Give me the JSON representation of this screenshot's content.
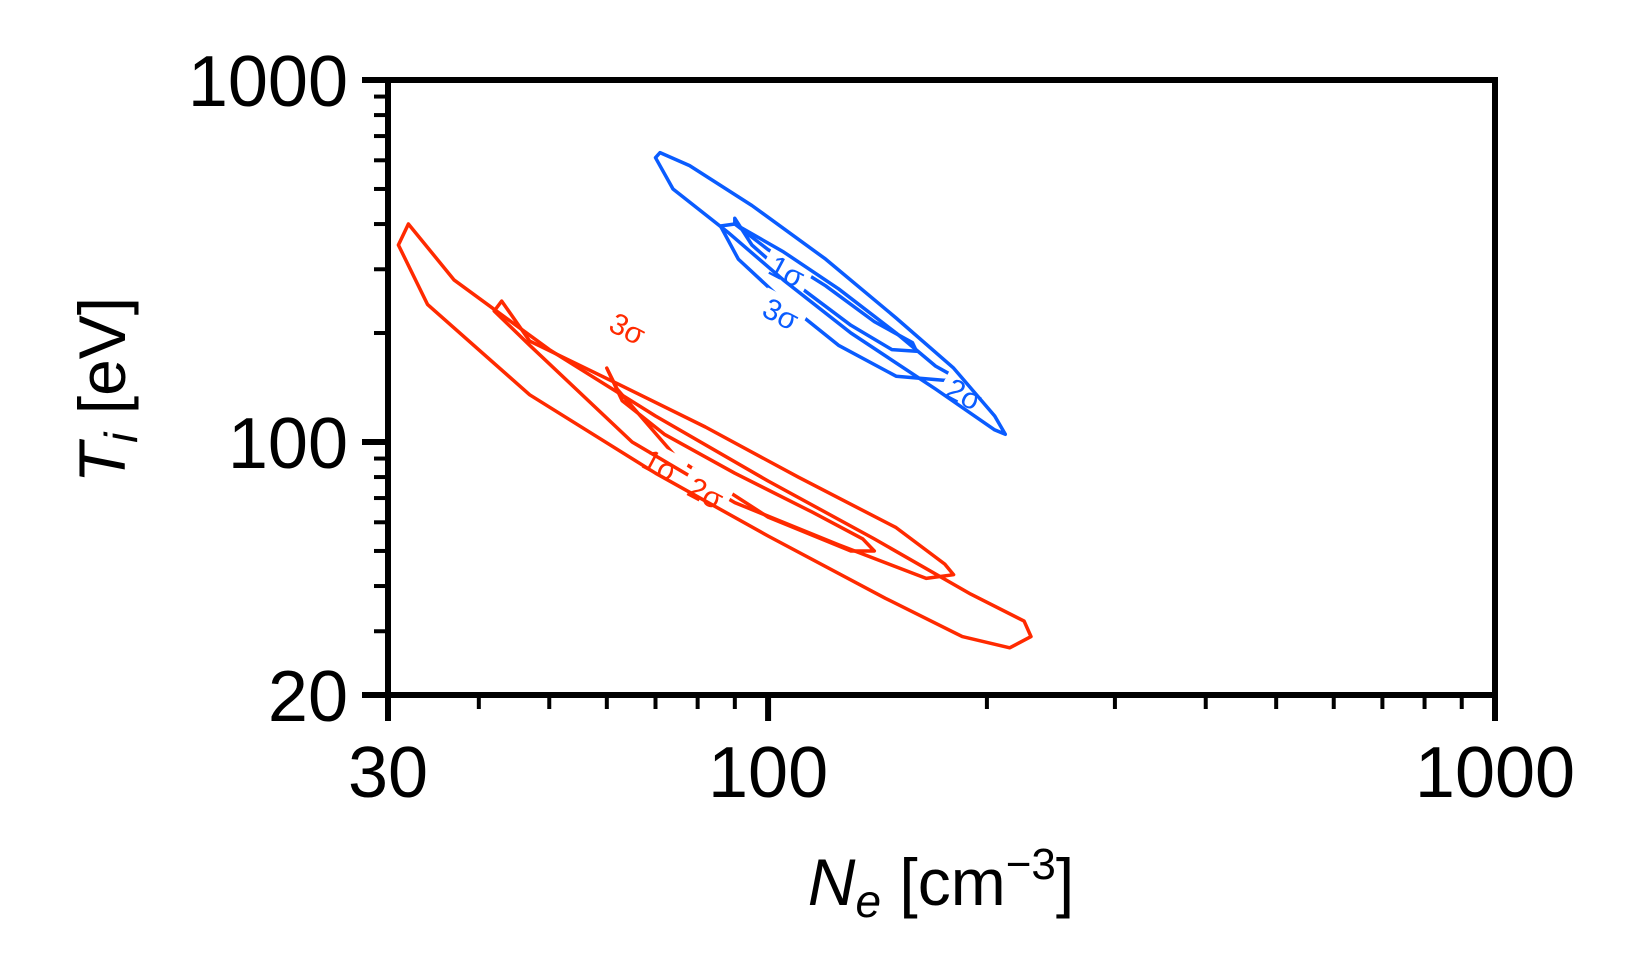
{
  "chart_data": {
    "type": "contour",
    "xlabel": {
      "main": "N",
      "sub": "e",
      "unit_open": " [cm",
      "unit_exp": "−3",
      "unit_close": "]"
    },
    "ylabel": {
      "main": "T",
      "sub": "i",
      "unit": " [eV]"
    },
    "x_scale": "log",
    "y_scale": "log",
    "xlim": [
      30,
      1000
    ],
    "ylim": [
      20,
      1000
    ],
    "x_ticklabels": [
      {
        "value": 30,
        "label": "30"
      },
      {
        "value": 100,
        "label": "100"
      },
      {
        "value": 1000,
        "label": "1000"
      }
    ],
    "y_ticklabels": [
      {
        "value": 20,
        "label": "20"
      },
      {
        "value": 100,
        "label": "100"
      },
      {
        "value": 1000,
        "label": "1000"
      }
    ],
    "x_minor_ticks": [
      40,
      50,
      60,
      70,
      80,
      90,
      200,
      300,
      400,
      500,
      600,
      700,
      800,
      900
    ],
    "y_minor_ticks": [
      30,
      40,
      50,
      60,
      70,
      80,
      90,
      200,
      300,
      400,
      500,
      600,
      700,
      800,
      900
    ],
    "grid": false,
    "series": [
      {
        "color": "#ff2a00",
        "contours": [
          {
            "level": "1σ",
            "label": "1σ",
            "label_at": [
              71,
              86
            ],
            "points": [
              [
                60,
                160
              ],
              [
                63,
                130
              ],
              [
                72,
                105
              ],
              [
                90,
                82
              ],
              [
                115,
                64
              ],
              [
                135,
                54
              ],
              [
                140,
                50
              ],
              [
                130,
                50
              ],
              [
                100,
                62
              ],
              [
                75,
                90
              ],
              [
                62,
                140
              ]
            ]
          },
          {
            "level": "2σ",
            "label": "2σ",
            "label_at": [
              82,
              72
            ],
            "points": [
              [
                43,
                245
              ],
              [
                47,
                190
              ],
              [
                62,
                145
              ],
              [
                82,
                110
              ],
              [
                110,
                80
              ],
              [
                150,
                58
              ],
              [
                175,
                46
              ],
              [
                180,
                43
              ],
              [
                165,
                42
              ],
              [
                125,
                52
              ],
              [
                90,
                68
              ],
              [
                65,
                100
              ],
              [
                47,
                185
              ],
              [
                42,
                230
              ]
            ]
          },
          {
            "level": "3σ",
            "label": "3σ",
            "label_at": [
              64,
              205
            ],
            "points": [
              [
                32,
                400
              ],
              [
                37,
                280
              ],
              [
                50,
                180
              ],
              [
                70,
                118
              ],
              [
                100,
                78
              ],
              [
                140,
                54
              ],
              [
                190,
                38
              ],
              [
                225,
                32
              ],
              [
                230,
                29
              ],
              [
                215,
                27
              ],
              [
                185,
                29
              ],
              [
                145,
                37
              ],
              [
                100,
                55
              ],
              [
                70,
                82
              ],
              [
                47,
                135
              ],
              [
                34,
                240
              ],
              [
                31,
                350
              ]
            ]
          }
        ]
      },
      {
        "color": "#0a5cff",
        "contours": [
          {
            "level": "1σ",
            "label": "1σ",
            "label_at": [
              106,
              295
            ],
            "points": [
              [
                90,
                415
              ],
              [
                95,
                350
              ],
              [
                110,
                270
              ],
              [
                130,
                210
              ],
              [
                148,
                180
              ],
              [
                160,
                178
              ],
              [
                158,
                188
              ],
              [
                140,
                215
              ],
              [
                120,
                270
              ],
              [
                100,
                340
              ],
              [
                90,
                400
              ]
            ]
          },
          {
            "level": "2σ",
            "label": "2σ",
            "label_at": [
              186,
              135
            ],
            "points": [
              [
                86,
                395
              ],
              [
                91,
                320
              ],
              [
                105,
                245
              ],
              [
                125,
                185
              ],
              [
                150,
                152
              ],
              [
                175,
                148
              ],
              [
                180,
                152
              ],
              [
                170,
                162
              ],
              [
                150,
                200
              ],
              [
                125,
                265
              ],
              [
                105,
                335
              ],
              [
                90,
                400
              ]
            ]
          },
          {
            "level": "3σ",
            "label": "3σ",
            "label_at": [
              104,
              225
            ],
            "points": [
              [
                70,
                610
              ],
              [
                74,
                500
              ],
              [
                88,
                380
              ],
              [
                105,
                280
              ],
              [
                130,
                200
              ],
              [
                170,
                140
              ],
              [
                205,
                108
              ],
              [
                212,
                105
              ],
              [
                205,
                118
              ],
              [
                180,
                160
              ],
              [
                150,
                220
              ],
              [
                120,
                320
              ],
              [
                95,
                450
              ],
              [
                78,
                580
              ],
              [
                71,
                630
              ]
            ]
          }
        ]
      }
    ]
  }
}
